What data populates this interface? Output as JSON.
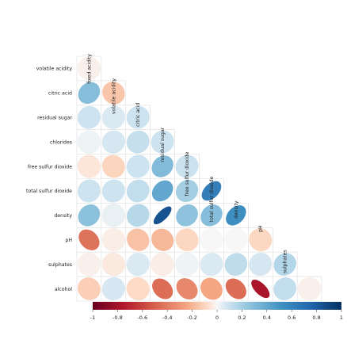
{
  "chart_data": {
    "type": "heatmap",
    "variables": [
      "fixed acidity",
      "volatile acidity",
      "citric acid",
      "residual sugar",
      "chlorides",
      "free sulfur dioxide",
      "total sulfur dioxide",
      "density",
      "pH",
      "sulphates",
      "alcohol"
    ],
    "row_labels": [
      "volatile acidity",
      "citric acid",
      "residual sugar",
      "chlorides",
      "free sulfur dioxide",
      "total sulfur dioxide",
      "density",
      "pH",
      "sulphates",
      "alcohol"
    ],
    "column_labels": [
      "fixed acidity",
      "volatile acidity",
      "citric acid",
      "residual sugar",
      "free sulfur dioxide",
      "total sulfur dioxide",
      "density",
      "pH",
      "sulphates"
    ],
    "corr": [
      [
        1.0,
        -0.02,
        0.29,
        0.09,
        0.02,
        -0.05,
        0.09,
        0.27,
        -0.43,
        -0.02,
        -0.12
      ],
      [
        -0.02,
        1.0,
        -0.15,
        0.06,
        0.07,
        -0.1,
        0.09,
        0.03,
        -0.03,
        -0.04,
        0.07
      ],
      [
        0.29,
        -0.15,
        1.0,
        0.09,
        0.11,
        0.09,
        0.12,
        0.15,
        -0.16,
        0.06,
        -0.08
      ],
      [
        0.09,
        0.06,
        0.09,
        1.0,
        0.09,
        0.3,
        0.4,
        0.84,
        -0.19,
        -0.03,
        -0.45
      ],
      [
        0.02,
        0.07,
        0.11,
        0.09,
        1.0,
        0.1,
        0.2,
        0.26,
        -0.09,
        0.02,
        -0.36
      ],
      [
        -0.05,
        -0.1,
        0.09,
        0.3,
        0.1,
        1.0,
        0.62,
        0.29,
        0.0,
        0.06,
        -0.25
      ],
      [
        0.09,
        0.09,
        0.12,
        0.4,
        0.2,
        0.62,
        1.0,
        0.53,
        0.0,
        0.13,
        -0.45
      ],
      [
        0.27,
        0.03,
        0.15,
        0.84,
        0.26,
        0.29,
        0.53,
        1.0,
        -0.09,
        0.07,
        -0.78
      ],
      [
        -0.43,
        -0.03,
        -0.16,
        -0.19,
        -0.09,
        0.0,
        0.0,
        -0.09,
        1.0,
        0.16,
        0.12
      ],
      [
        -0.02,
        -0.04,
        0.06,
        -0.03,
        0.02,
        0.06,
        0.13,
        0.07,
        0.16,
        1.0,
        -0.02
      ],
      [
        -0.12,
        0.07,
        -0.08,
        -0.45,
        -0.36,
        -0.25,
        -0.45,
        -0.78,
        0.12,
        -0.02,
        1.0
      ]
    ],
    "colorbar_ticks": [
      "-1",
      "-0.8",
      "-0.6",
      "-0.4",
      "-0.2",
      "0",
      "0.2",
      "0.4",
      "0.6",
      "0.8",
      "1"
    ],
    "color_range": [
      -1,
      1
    ],
    "colors": {
      "negative": "#67001f",
      "neutral": "#f7f7f7",
      "positive": "#053061"
    }
  }
}
